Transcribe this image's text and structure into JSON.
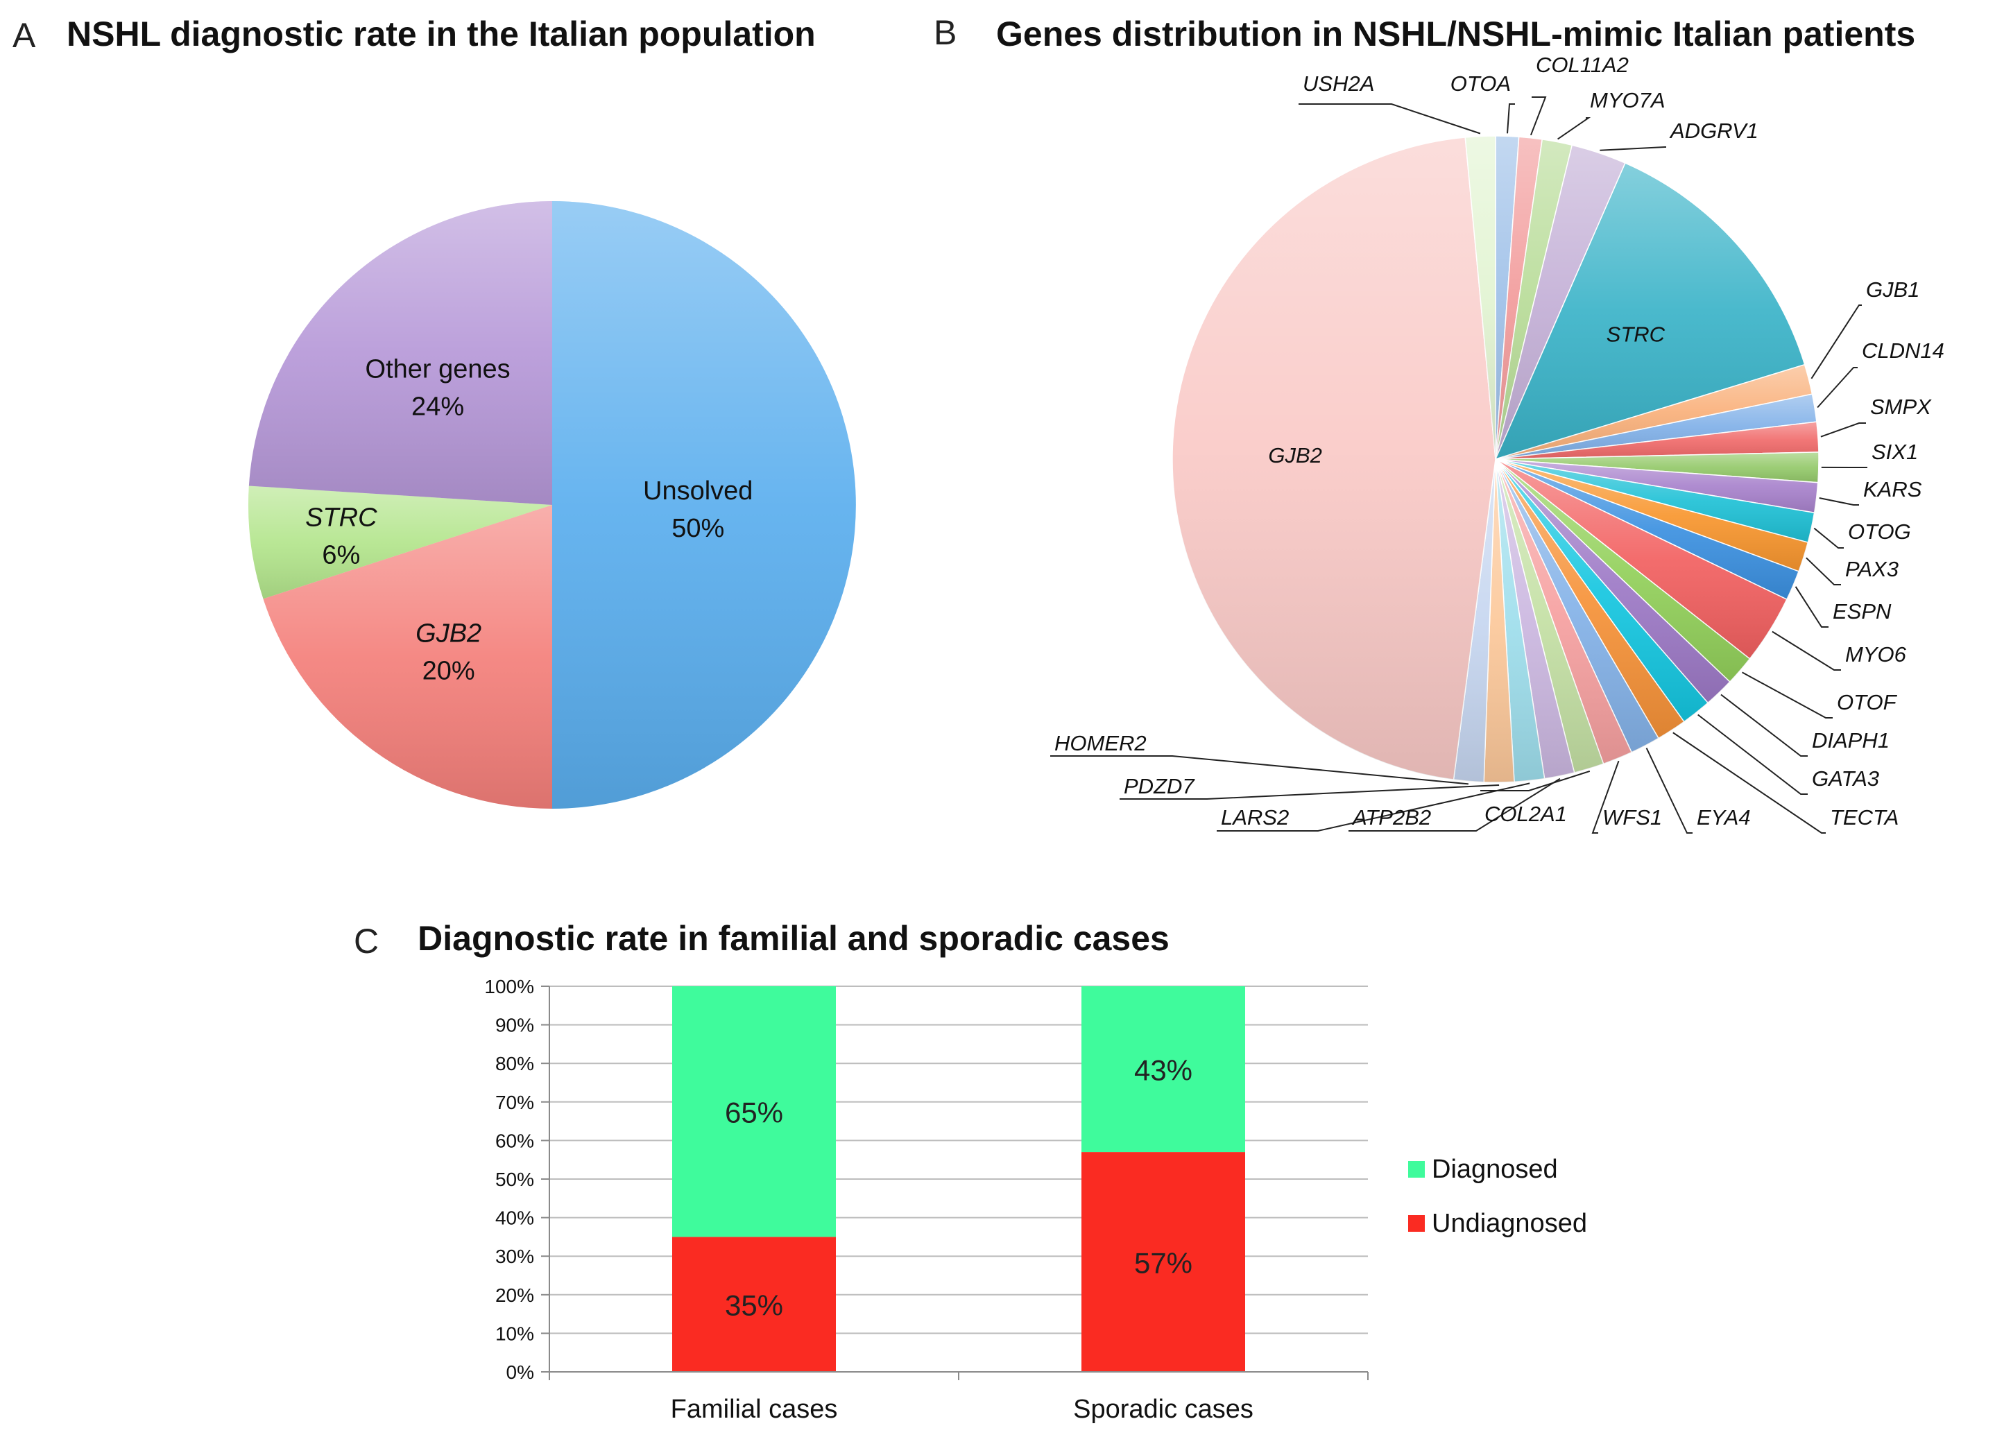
{
  "chart_data": [
    {
      "type": "pie",
      "panel": "A",
      "title": "NSHL diagnostic rate in the Italian population",
      "slices": [
        {
          "label": "Unsolved",
          "value": 50,
          "display": "50%",
          "italic": false,
          "color": "#5aaeee"
        },
        {
          "label": "GJB2",
          "value": 20,
          "display": "20%",
          "italic": true,
          "color": "#f47f7a"
        },
        {
          "label": "STRC",
          "value": 6,
          "display": "6%",
          "italic": true,
          "color": "#b3e58c"
        },
        {
          "label": "Other genes",
          "value": 24,
          "display": "24%",
          "italic": false,
          "color": "#b698d8"
        }
      ]
    },
    {
      "type": "pie",
      "panel": "B",
      "title": "Genes distribution in NSHL/NSHL-mimic Italian patients",
      "inside_labels": [
        "GJB2",
        "STRC"
      ],
      "slices": [
        {
          "label": "OTOA",
          "value": 1.0,
          "color": "#9ec0e8"
        },
        {
          "label": "COL11A2",
          "value": 1.0,
          "color": "#f29b9b"
        },
        {
          "label": "MYO7A",
          "value": 1.3,
          "color": "#b8dc98"
        },
        {
          "label": "ADGRV1",
          "value": 2.4,
          "color": "#c3afd6"
        },
        {
          "label": "STRC",
          "value": 11.9,
          "color": "#3ab3c8"
        },
        {
          "label": "GJB1",
          "value": 1.3,
          "color": "#f9b07a"
        },
        {
          "label": "CLDN14",
          "value": 1.2,
          "color": "#80b0e8"
        },
        {
          "label": "SMPX",
          "value": 1.3,
          "color": "#f06a6a"
        },
        {
          "label": "SIX1",
          "value": 1.3,
          "color": "#94c96a"
        },
        {
          "label": "KARS",
          "value": 1.3,
          "color": "#a882cc"
        },
        {
          "label": "OTOG",
          "value": 1.3,
          "color": "#1fc1d6"
        },
        {
          "label": "PAX3",
          "value": 1.3,
          "color": "#f8962e"
        },
        {
          "label": "ESPN",
          "value": 1.3,
          "color": "#3b90e0"
        },
        {
          "label": "MYO6",
          "value": 3.0,
          "color": "#f26060"
        },
        {
          "label": "OTOF",
          "value": 1.3,
          "color": "#92d05a"
        },
        {
          "label": "DIAPH1",
          "value": 1.3,
          "color": "#9d79c6"
        },
        {
          "label": "GATA3",
          "value": 1.3,
          "color": "#14c6e0"
        },
        {
          "label": "TECTA",
          "value": 1.3,
          "color": "#f69238"
        },
        {
          "label": "EYA4",
          "value": 1.3,
          "color": "#84b2e8"
        },
        {
          "label": "WFS1",
          "value": 1.3,
          "color": "#f6a0a0"
        },
        {
          "label": "COL2A1",
          "value": 1.3,
          "color": "#c4e0a4"
        },
        {
          "label": "ATP2B2",
          "value": 1.3,
          "color": "#cbb7e0"
        },
        {
          "label": "LARS2",
          "value": 1.3,
          "color": "#9edeec"
        },
        {
          "label": "PDZD7",
          "value": 1.3,
          "color": "#fcc89a"
        },
        {
          "label": "HOMER2",
          "value": 1.3,
          "color": "#c6d6f0"
        },
        {
          "label": "GJB2",
          "value": 40.3,
          "color": "#f9c9c6"
        },
        {
          "label": "USH2A",
          "value": 1.3,
          "color": "#e2f4d2"
        }
      ]
    },
    {
      "type": "stacked-bar",
      "panel": "C",
      "title": "Diagnostic rate in familial and sporadic cases",
      "categories": [
        "Familial cases",
        "Sporadic cases"
      ],
      "series": [
        {
          "name": "Undiagnosed",
          "values": [
            35,
            57
          ],
          "labels": [
            "35%",
            "57%"
          ],
          "color": "#fa2b22"
        },
        {
          "name": "Diagnosed",
          "values": [
            65,
            43
          ],
          "labels": [
            "65%",
            "43%"
          ],
          "color": "#3ffb9c"
        }
      ],
      "ylim": [
        0,
        100
      ],
      "yticks": [
        "0%",
        "10%",
        "20%",
        "30%",
        "40%",
        "50%",
        "60%",
        "70%",
        "80%",
        "90%",
        "100%"
      ],
      "legend": [
        "Diagnosed",
        "Undiagnosed"
      ],
      "legend_position": "right",
      "grid": true
    }
  ]
}
